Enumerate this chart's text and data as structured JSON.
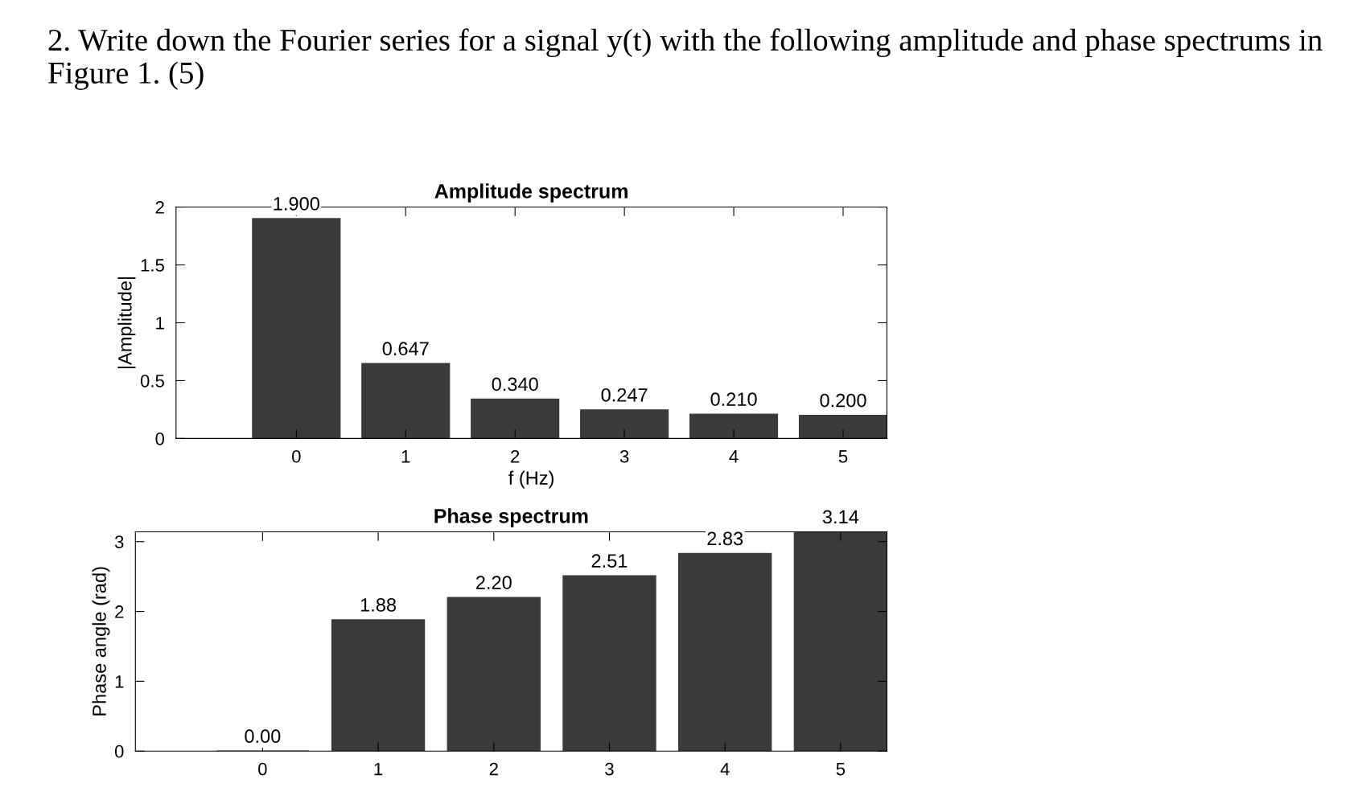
{
  "chart_data": [
    {
      "type": "bar",
      "title": "Amplitude spectrum",
      "xlabel": "f (Hz)",
      "ylabel": "|Amplitude|",
      "annotations": [
        "2. Write down the Fourier series for a signal y(t) with the following amplitude and phase spectrums in Figure 1. (5)"
      ],
      "categories": [
        "0",
        "1",
        "2",
        "3",
        "4",
        "5"
      ],
      "values": [
        1.9,
        0.647,
        0.34,
        0.247,
        0.21,
        0.2
      ],
      "value_labels": [
        "1.900",
        "0.647",
        "0.340",
        "0.247",
        "0.210",
        "0.200"
      ],
      "color": "#3a3a3a",
      "ylim": [
        0,
        2
      ],
      "yticks": [
        0,
        0.5,
        1,
        1.5,
        2
      ]
    },
    {
      "type": "bar",
      "title": "Phase spectrum",
      "ylabel": "Phase angle (rad)",
      "categories": [
        "0",
        "1",
        "2",
        "3",
        "4",
        "5"
      ],
      "values": [
        0,
        1.88,
        2.2,
        2.51,
        2.83,
        3.14
      ],
      "value_labels": [
        "0.00",
        "1.88",
        "2.20",
        "2.51",
        "2.83",
        "3.14"
      ],
      "color": "#3a3a3a",
      "ylim": [
        0,
        3.14
      ],
      "yticks": [
        0,
        1,
        2,
        3
      ]
    }
  ]
}
